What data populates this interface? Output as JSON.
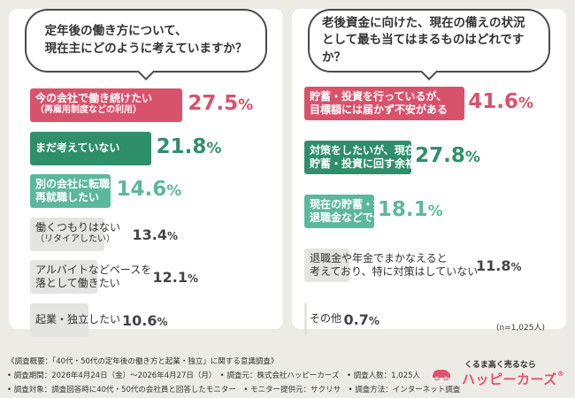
{
  "chart_data": [
    {
      "type": "bar",
      "title": "定年後の働き方について、\n現在主にどのように考えていますか？",
      "categories": [
        "今の会社で働き続けたい\n（再雇用制度などの利用）",
        "まだ考えていない",
        "別の会社に転職・\n再就職したい",
        "働くつもりはない\n（リタイアしたい）",
        "アルバイトなどペースを\n落として働きたい",
        "起業・独立したい"
      ],
      "values": [
        27.5,
        21.8,
        14.6,
        13.4,
        12.1,
        10.6
      ],
      "value_labels": [
        "27.5",
        "21.8",
        "14.6",
        "13.4",
        "12.1",
        "10.6"
      ],
      "unit": "%",
      "colors": [
        "#d9526c",
        "#2f8f6b",
        "#5cb89d",
        "#e4e4e2",
        "#e4e4e2",
        "#e4e4e2"
      ],
      "value_colors": [
        "#d9526c",
        "#2f8f6b",
        "#5cb89d",
        "#444444",
        "#444444",
        "#444444"
      ],
      "xlim": [
        0,
        30
      ]
    },
    {
      "type": "bar",
      "title": "老後資金に向けた、現在の備えの状況\nとして最も当てはまるものはどれですか？",
      "categories": [
        "貯蓄・投資を行っているが、\n目標額には届かず不安がある",
        "対策をしたいが、現在の収入では\n貯蓄・投資に回す余裕がない",
        "現在の貯蓄・投資や\n退職金などで十分に備えられる",
        "退職金や年金でまかなえると\n考えており、特に対策はしていない",
        "その他"
      ],
      "values": [
        41.6,
        27.8,
        18.1,
        11.8,
        0.7
      ],
      "value_labels": [
        "41.6",
        "27.8",
        "18.1",
        "11.8",
        "0.7"
      ],
      "unit": "%",
      "colors": [
        "#d9526c",
        "#2f8f6b",
        "#5cb89d",
        "#e4e4e2",
        "#e4e4e2"
      ],
      "value_colors": [
        "#d9526c",
        "#2f8f6b",
        "#5cb89d",
        "#444444",
        "#444444"
      ],
      "xlim": [
        0,
        45
      ]
    }
  ],
  "sample_note": "(n=1,025人)",
  "footer": {
    "line1": "《調査概要：「40代・50代の定年後の働き方と起業・独立」に関する意識調査》",
    "line2": "• 調査期間：2026年4月24日（金）～2026年4月27日（月）　• 調査元：株式会社ハッピーカーズ　• 調査人数：1,025人",
    "line3": "• 調査対象：調査回答時に40代・50代の会社員と回答したモニター　• モニター提供元：サクリサ　• 調査方法：インターネット調査"
  },
  "logo": {
    "tagline": "くるま高く売るなら",
    "name": "ハッピーカーズ",
    "mark": "®"
  }
}
